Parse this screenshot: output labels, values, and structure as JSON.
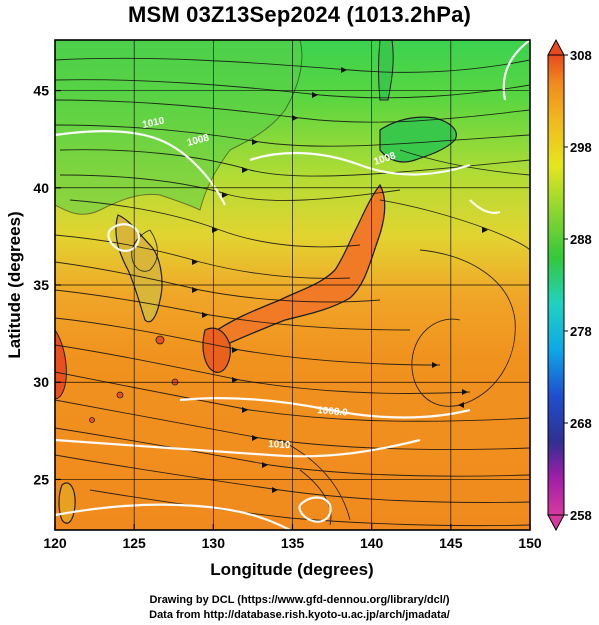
{
  "title": "MSM 03Z13Sep2024 (1013.2hPa)",
  "xlabel": "Longitude (degrees)",
  "ylabel": "Latitude  (degrees)",
  "credits": [
    "Drawing by DCL (https://www.gfd-dennou.org/library/dcl/)",
    "Data from http://database.rish.kyoto-u.ac.jp/arch/jmadata/"
  ],
  "chart_data": {
    "type": "map",
    "variable_shaded": "temperature (K)",
    "x_ticks": [
      "120",
      "125",
      "130",
      "135",
      "140",
      "145",
      "150"
    ],
    "y_ticks": [
      "25",
      "30",
      "35",
      "40",
      "45"
    ],
    "xlim": [
      120,
      150
    ],
    "ylim": [
      22.4,
      47.6
    ],
    "grid": true,
    "colorbar": {
      "ticks": [
        "308",
        "298",
        "288",
        "278",
        "268",
        "258"
      ],
      "range": [
        258,
        308
      ]
    },
    "contour_labels": [
      {
        "text": "1010",
        "lon": 126.8,
        "lat": 45.8
      },
      {
        "text": "1008",
        "lon": 129.7,
        "lat": 44.2
      },
      {
        "text": "1008",
        "lon": 141.4,
        "lat": 42.3
      },
      {
        "text": "1008.0",
        "lon": 137.1,
        "lat": 29.3
      },
      {
        "text": "1010",
        "lon": 131.4,
        "lat": 27.6
      }
    ]
  },
  "colors": {
    "colorbar_stops": [
      "#d63a9e",
      "#303090",
      "#1e4fd0",
      "#0fa8e6",
      "#20d2c0",
      "#34c83a",
      "#8cd630",
      "#e6e61e",
      "#f0b81e",
      "#f08a1e",
      "#e84a1e"
    ]
  }
}
